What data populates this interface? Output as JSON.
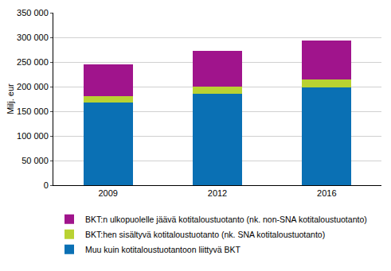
{
  "chart_data": {
    "type": "bar",
    "stacked": true,
    "grid": true,
    "legend": "bottom",
    "y_label": "Milj. eur",
    "categories": [
      "2009",
      "2012",
      "2016"
    ],
    "series": [
      {
        "name": "Muu kuin kotitaloustuotantoon liittyvä BKT",
        "color": "#0a70b4",
        "values": [
          167000,
          185000,
          199000
        ]
      },
      {
        "name": "BKT:hen sisältyvä kotitaloustuotanto (nk. SNA kotitaloustuotanto)",
        "color": "#b9d232",
        "values": [
          14000,
          15000,
          16000
        ]
      },
      {
        "name": "BKT:n ulkopuolelle jäävä kotitaloustuotanto (nk. non-SNA kotitaloustuotanto)",
        "color": "#a0148c",
        "values": [
          64000,
          73000,
          79000
        ]
      }
    ],
    "ylim": [
      0,
      350000
    ],
    "yticks": [
      0,
      {
        "value": 50000,
        "label": "50 000"
      },
      {
        "value": 100000,
        "label": "100 000"
      },
      {
        "value": 150000,
        "label": "150 000"
      },
      {
        "value": 200000,
        "label": "200 000"
      },
      {
        "value": 250000,
        "label": "250 000"
      },
      {
        "value": 300000,
        "label": "300 000"
      },
      {
        "value": 350000,
        "label": "350 000"
      }
    ]
  }
}
